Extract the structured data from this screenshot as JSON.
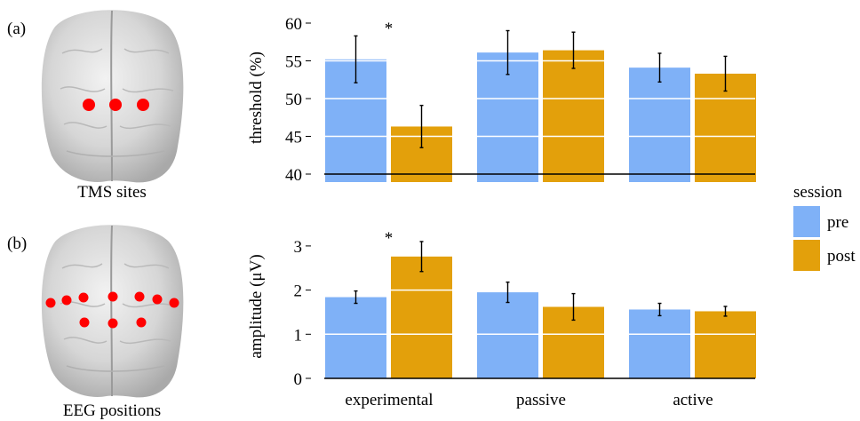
{
  "panel_a": {
    "label": "(a)",
    "caption": "TMS sites"
  },
  "panel_b": {
    "label": "(b)",
    "caption": "EEG positions"
  },
  "legend": {
    "title": "session",
    "items": [
      {
        "name": "pre",
        "color": "#7fb1f7"
      },
      {
        "name": "post",
        "color": "#e3a00b"
      }
    ]
  },
  "chart_data": [
    {
      "type": "bar",
      "panel": "a",
      "ylabel": "threshold  (%)",
      "ylim": [
        40,
        60
      ],
      "yticks": [
        40,
        45,
        50,
        55,
        60
      ],
      "categories": [
        "experimental",
        "passive",
        "active"
      ],
      "grid": "horizontal white lines over bars",
      "series": [
        {
          "name": "pre",
          "values": [
            55.2,
            56.1,
            54.1
          ],
          "errors": [
            3.1,
            2.9,
            1.9
          ]
        },
        {
          "name": "post",
          "values": [
            46.3,
            56.4,
            53.3
          ],
          "errors": [
            2.8,
            2.4,
            2.3
          ]
        }
      ],
      "annotations": [
        {
          "text": "*",
          "category": "experimental"
        }
      ]
    },
    {
      "type": "bar",
      "panel": "b",
      "ylabel": "amplitude (μV)",
      "ylim": [
        0,
        3.3
      ],
      "yticks": [
        0,
        1,
        2,
        3
      ],
      "categories": [
        "experimental",
        "passive",
        "active"
      ],
      "grid": "horizontal white lines over bars",
      "series": [
        {
          "name": "pre",
          "values": [
            1.84,
            1.95,
            1.56
          ],
          "errors": [
            0.14,
            0.23,
            0.14
          ]
        },
        {
          "name": "post",
          "values": [
            2.76,
            1.62,
            1.52
          ],
          "errors": [
            0.34,
            0.3,
            0.11
          ]
        }
      ],
      "annotations": [
        {
          "text": "*",
          "category": "experimental"
        }
      ]
    }
  ]
}
